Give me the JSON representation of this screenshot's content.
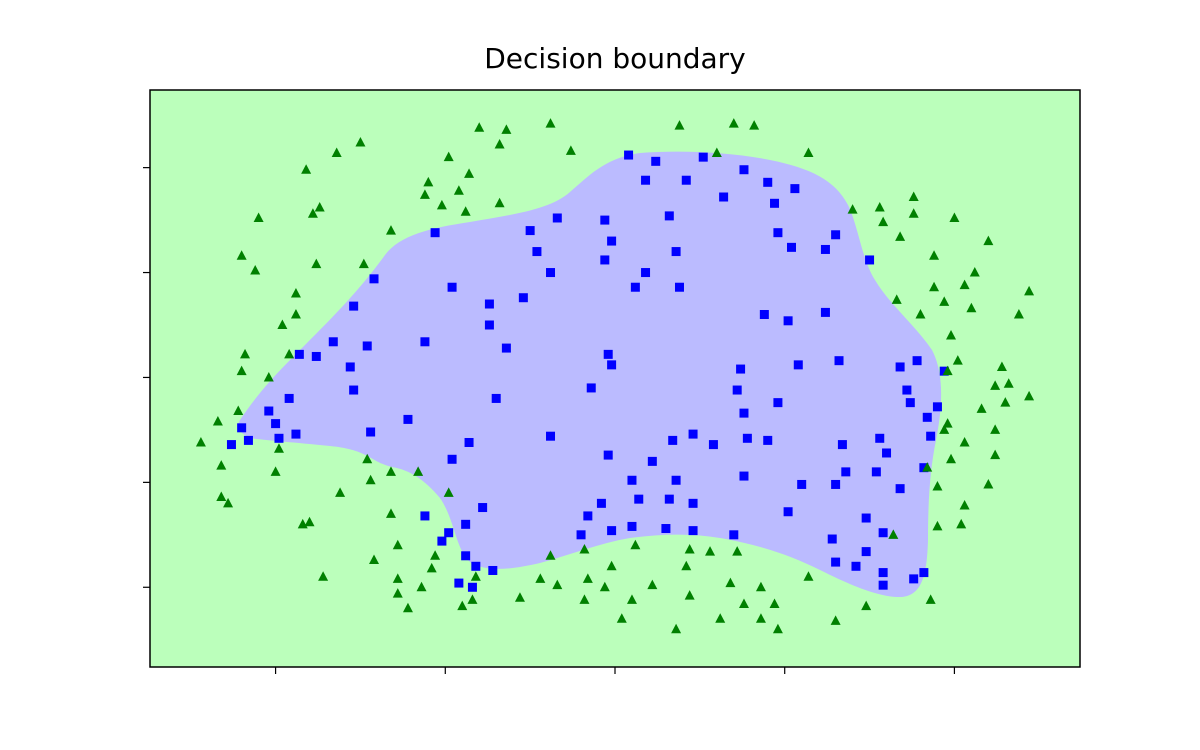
{
  "chart_data": {
    "type": "scatter",
    "title": "Decision boundary",
    "xlim": [
      -1.37,
      1.37
    ],
    "ylim": [
      -1.38,
      1.37
    ],
    "xticks": [
      -1,
      -0.5,
      0,
      0.5,
      1
    ],
    "yticks": [
      -1,
      -0.5,
      0,
      0.5,
      1
    ],
    "grid": false,
    "series": [
      {
        "color": "#0000ff",
        "marker": "square",
        "x": [
          0.04,
          0.12,
          0.26,
          0.38,
          0.45,
          0.53,
          0.21,
          0.09,
          0.32,
          0.47,
          0.16,
          -0.03,
          -0.17,
          -0.25,
          -0.01,
          -0.23,
          -0.03,
          -0.19,
          0.09,
          0.18,
          0.06,
          0.19,
          0.48,
          0.52,
          0.62,
          0.65,
          0.75,
          -0.53,
          -0.71,
          -0.48,
          -0.37,
          -0.37,
          -0.27,
          -0.32,
          -0.56,
          -0.77,
          -0.83,
          -0.73,
          -0.88,
          -0.78,
          -0.77,
          -0.93,
          -0.96,
          -1.02,
          -1.0,
          -1.1,
          -1.08,
          -1.13,
          -0.99,
          -0.94,
          -0.72,
          -0.61,
          -0.35,
          -0.07,
          -0.02,
          -0.01,
          -0.19,
          -0.43,
          -0.48,
          -0.02,
          0.11,
          0.17,
          0.23,
          0.29,
          0.37,
          0.36,
          0.38,
          0.48,
          0.39,
          0.45,
          0.38,
          0.54,
          0.66,
          0.44,
          0.51,
          0.62,
          0.84,
          0.89,
          0.97,
          0.86,
          0.87,
          0.95,
          0.92,
          0.93,
          0.78,
          0.8,
          0.67,
          0.68,
          0.77,
          0.91,
          0.84,
          0.65,
          0.55,
          0.51,
          0.74,
          0.79,
          0.64,
          0.65,
          0.74,
          0.71,
          0.79,
          0.79,
          0.88,
          0.91,
          0.35,
          0.23,
          0.15,
          0.05,
          -0.01,
          -0.08,
          -0.1,
          -0.04,
          0.07,
          0.16,
          0.23,
          0.05,
          0.18,
          -0.39,
          -0.56,
          -0.44,
          -0.49,
          -0.51,
          -0.44,
          -0.41,
          -0.36,
          -0.46,
          -0.42
        ],
        "y": [
          1.06,
          1.03,
          1.05,
          0.99,
          0.93,
          0.9,
          0.94,
          0.94,
          0.86,
          0.83,
          0.77,
          0.75,
          0.76,
          0.7,
          0.65,
          0.6,
          0.56,
          0.5,
          0.5,
          0.6,
          0.43,
          0.43,
          0.69,
          0.62,
          0.61,
          0.68,
          0.56,
          0.69,
          0.47,
          0.43,
          0.35,
          0.25,
          0.38,
          0.14,
          0.17,
          0.34,
          0.17,
          0.15,
          0.1,
          0.05,
          -0.06,
          0.11,
          -0.1,
          -0.16,
          -0.22,
          -0.24,
          -0.3,
          -0.32,
          -0.29,
          -0.27,
          -0.26,
          -0.2,
          -0.1,
          -0.05,
          0.11,
          0.06,
          -0.28,
          -0.31,
          -0.39,
          -0.37,
          -0.4,
          -0.3,
          -0.27,
          -0.32,
          0.04,
          -0.06,
          -0.17,
          -0.12,
          -0.29,
          -0.3,
          -0.47,
          0.06,
          0.08,
          0.3,
          0.27,
          0.31,
          0.05,
          0.08,
          0.03,
          -0.06,
          -0.12,
          -0.14,
          -0.19,
          -0.28,
          -0.29,
          -0.36,
          -0.32,
          -0.45,
          -0.45,
          -0.43,
          -0.53,
          -0.51,
          -0.51,
          -0.64,
          -0.67,
          -0.74,
          -0.77,
          -0.88,
          -0.83,
          -0.9,
          -0.93,
          -0.99,
          -0.96,
          -0.93,
          -0.75,
          -0.73,
          -0.72,
          -0.71,
          -0.73,
          -0.66,
          -0.75,
          -0.6,
          -0.58,
          -0.58,
          -0.6,
          -0.49,
          -0.49,
          -0.62,
          -0.66,
          -0.7,
          -0.74,
          -0.78,
          -0.85,
          -0.9,
          -0.92,
          -0.98,
          -1.0
        ]
      },
      {
        "color": "#008000",
        "marker": "triangle",
        "x": [
          -1.22,
          -1.17,
          -1.16,
          -1.16,
          -1.14,
          -1.11,
          -1.1,
          -1.09,
          -1.1,
          -1.06,
          -1.05,
          -1.02,
          -1.0,
          -0.99,
          -0.98,
          -0.94,
          -0.94,
          -0.92,
          -0.9,
          -0.96,
          -0.91,
          -0.89,
          -0.87,
          -0.88,
          -0.86,
          -0.82,
          -0.81,
          -0.75,
          -0.74,
          -0.73,
          -0.72,
          -0.71,
          -0.66,
          -0.66,
          -0.66,
          -0.64,
          -0.64,
          -0.64,
          -0.61,
          -0.58,
          -0.57,
          -0.56,
          -0.55,
          -0.53,
          -0.54,
          -0.51,
          -0.49,
          -0.49,
          -0.46,
          -0.45,
          -0.44,
          -0.43,
          -0.42,
          -0.41,
          -0.4,
          -0.34,
          -0.34,
          -0.32,
          -0.28,
          -0.22,
          -0.19,
          -0.19,
          -0.17,
          -0.13,
          -0.09,
          -0.09,
          -0.08,
          -0.03,
          -0.01,
          0.02,
          0.05,
          0.06,
          0.11,
          0.18,
          0.19,
          0.21,
          0.22,
          0.22,
          0.28,
          0.3,
          0.31,
          0.34,
          0.35,
          0.36,
          0.38,
          0.41,
          0.43,
          0.43,
          0.47,
          0.48,
          0.57,
          0.57,
          0.65,
          0.7,
          0.74,
          0.78,
          0.79,
          0.82,
          0.83,
          0.84,
          0.88,
          0.88,
          0.9,
          0.94,
          0.94,
          0.93,
          0.97,
          0.98,
          0.99,
          1.01,
          1.0,
          1.03,
          1.06,
          1.05,
          1.1,
          0.95,
          0.95,
          0.92,
          0.98,
          0.97,
          0.99,
          1.02,
          1.03,
          1.03,
          1.08,
          1.12,
          1.12,
          1.12,
          1.1,
          1.14,
          1.15,
          1.16,
          1.19,
          1.22,
          1.22
        ],
        "y": [
          -0.31,
          -0.21,
          -0.42,
          -0.57,
          -0.6,
          -0.16,
          0.03,
          0.11,
          0.58,
          0.51,
          0.76,
          0.0,
          -0.45,
          -0.34,
          0.25,
          0.4,
          0.3,
          -0.7,
          -0.69,
          0.11,
          0.99,
          0.78,
          0.81,
          0.54,
          -0.95,
          1.07,
          -0.55,
          1.12,
          0.54,
          -0.39,
          -0.49,
          -0.87,
          -0.45,
          0.7,
          -0.65,
          -0.8,
          -0.96,
          -1.03,
          -1.1,
          -0.45,
          -1.0,
          0.87,
          0.93,
          -0.85,
          -0.91,
          0.82,
          1.05,
          -0.55,
          0.89,
          -1.09,
          0.79,
          0.97,
          -1.06,
          -0.95,
          1.19,
          1.11,
          0.83,
          1.18,
          -1.05,
          -0.96,
          -0.85,
          1.21,
          -0.99,
          1.08,
          -0.82,
          -1.06,
          -0.96,
          -1.0,
          -0.9,
          -1.15,
          -1.06,
          -0.8,
          -0.99,
          -1.2,
          1.2,
          -0.9,
          -0.82,
          -1.04,
          -0.83,
          1.07,
          -1.15,
          -0.98,
          1.21,
          -0.83,
          -1.08,
          1.2,
          -1.0,
          -1.15,
          -1.08,
          -1.2,
          1.07,
          -0.95,
          -1.16,
          0.8,
          -1.09,
          0.81,
          0.74,
          -0.75,
          0.37,
          0.67,
          0.86,
          0.78,
          0.3,
          0.58,
          0.43,
          -1.06,
          0.36,
          0.03,
          0.2,
          0.08,
          0.76,
          0.44,
          0.5,
          0.33,
          0.65,
          -0.71,
          -0.52,
          -0.43,
          -0.22,
          -0.25,
          -0.39,
          -0.7,
          -0.61,
          -0.31,
          -0.15,
          -0.04,
          -0.25,
          -0.37,
          -0.51,
          0.05,
          -0.12,
          -0.03,
          0.3,
          0.41,
          -0.09
        ]
      }
    ]
  }
}
